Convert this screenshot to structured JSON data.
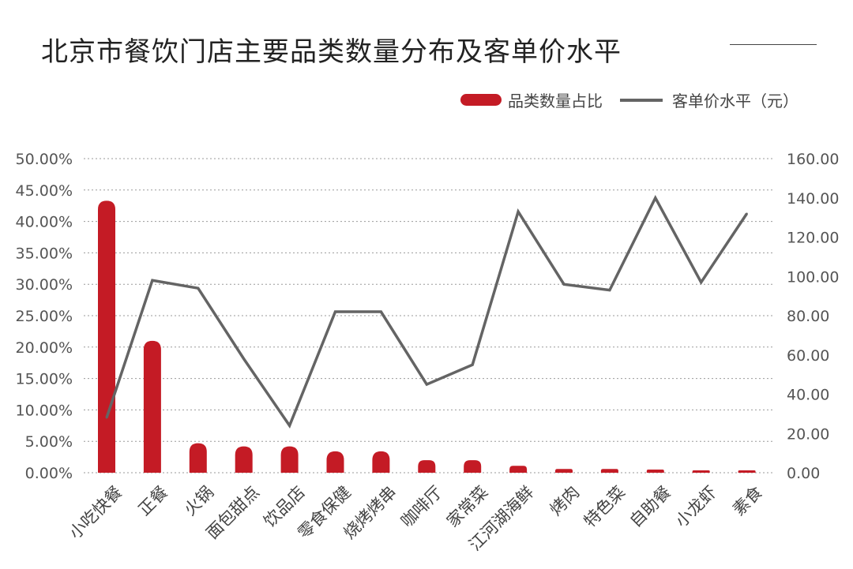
{
  "title": "北京市餐饮门店主要品类数量分布及客单价水平",
  "legend": {
    "bar_label": "品类数量占比",
    "line_label": "客单价水平（元）"
  },
  "colors": {
    "bar": "#c41b25",
    "line": "#646464",
    "grid": "#9a9a9a",
    "text": "#444444"
  },
  "chart_data": {
    "type": "bar+line",
    "categories": [
      "小吃快餐",
      "正餐",
      "火锅",
      "面包甜点",
      "饮品店",
      "零食保健",
      "烧烤烤串",
      "咖啡厅",
      "家常菜",
      "江河湖海鲜",
      "烤肉",
      "特色菜",
      "自助餐",
      "小龙虾",
      "素食"
    ],
    "series": [
      {
        "name": "品类数量占比",
        "type": "bar",
        "axis": "left",
        "values": [
          43.3,
          21.0,
          4.7,
          4.2,
          4.2,
          3.4,
          3.4,
          2.0,
          2.0,
          1.1,
          0.6,
          0.6,
          0.5,
          0.3,
          0.3
        ]
      },
      {
        "name": "客单价水平（元）",
        "type": "line",
        "axis": "right",
        "values": [
          28,
          98,
          94,
          58,
          24,
          82,
          82,
          45,
          55,
          133,
          96,
          93,
          140,
          97,
          132
        ]
      }
    ],
    "y_left": {
      "min": 0,
      "max": 50,
      "ticks": [
        "0.00%",
        "5.00%",
        "10.00%",
        "15.00%",
        "20.00%",
        "25.00%",
        "30.00%",
        "35.00%",
        "40.00%",
        "45.00%",
        "50.00%"
      ]
    },
    "y_right": {
      "min": 0,
      "max": 160,
      "ticks": [
        "0.00",
        "20.00",
        "40.00",
        "60.00",
        "80.00",
        "100.00",
        "120.00",
        "140.00",
        "160.00"
      ]
    },
    "grid": true,
    "legend_position": "top-right"
  }
}
